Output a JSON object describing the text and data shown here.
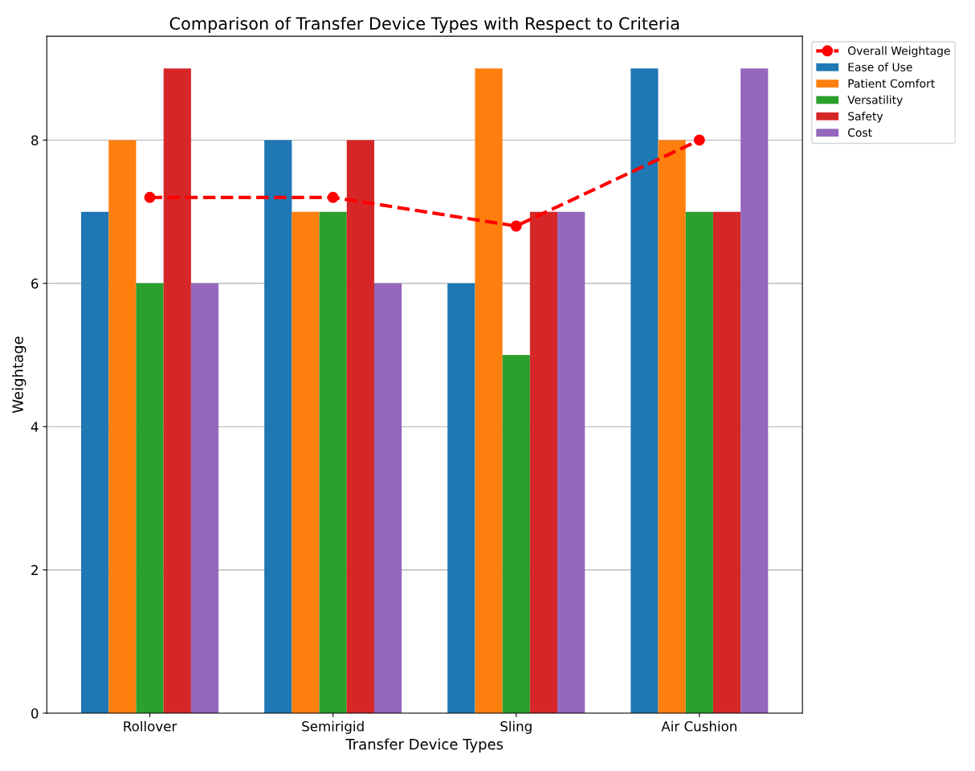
{
  "chart_data": {
    "type": "bar",
    "title": "Comparison of Transfer Device Types with Respect to Criteria",
    "xlabel": "Transfer Device Types",
    "ylabel": "Weightage",
    "categories": [
      "Rollover",
      "Semirigid",
      "Sling",
      "Air Cushion"
    ],
    "series": [
      {
        "name": "Overall Weightage",
        "type": "line",
        "color": "#ff0000",
        "values": [
          7.2,
          7.2,
          6.8,
          8.0
        ],
        "marker": "circle",
        "line_style": "dashed"
      },
      {
        "name": "Ease of Use",
        "color": "#1f77b4",
        "values": [
          7,
          8,
          6,
          9
        ]
      },
      {
        "name": "Patient Comfort",
        "color": "#ff7f0e",
        "values": [
          8,
          7,
          9,
          8
        ]
      },
      {
        "name": "Versatility",
        "color": "#2ca02c",
        "values": [
          6,
          7,
          5,
          7
        ]
      },
      {
        "name": "Safety",
        "color": "#d62728",
        "values": [
          9,
          8,
          7,
          7
        ]
      },
      {
        "name": "Cost",
        "color": "#9467bd",
        "values": [
          6,
          6,
          7,
          9
        ]
      }
    ],
    "ylim": [
      0,
      9.45
    ],
    "yticks": [
      0,
      2,
      4,
      6,
      8
    ],
    "grid": "y",
    "legend": "right"
  }
}
